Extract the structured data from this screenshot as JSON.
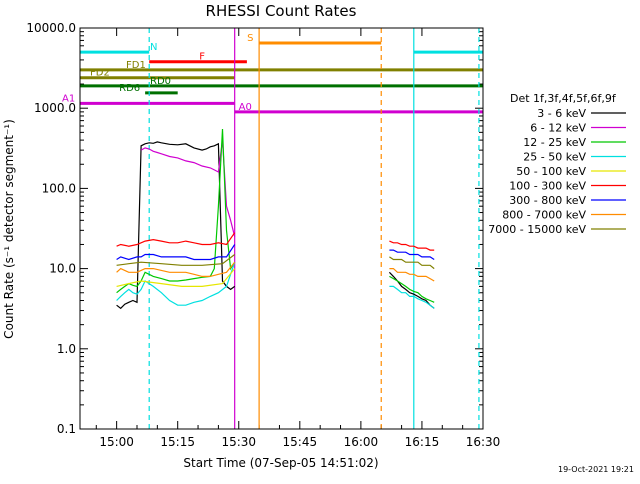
{
  "chart_data": {
    "type": "line",
    "title": "RHESSI Count Rates",
    "xlabel": "Start Time (07-Sep-05 14:51:02)",
    "ylabel": "Count Rate (s⁻¹ detector segment⁻¹)",
    "y_scale": "log",
    "ylim": [
      0.1,
      10000
    ],
    "xlim_minutes": [
      0,
      99
    ],
    "x_tick_labels": [
      "15:00",
      "15:15",
      "15:30",
      "15:45",
      "16:00",
      "16:15",
      "16:30"
    ],
    "x_tick_minutes": [
      9,
      24,
      39,
      54,
      69,
      84,
      99
    ],
    "y_tick_labels": [
      "0.1",
      "1.0",
      "10.0",
      "100.0",
      "1000.0",
      "10000.0"
    ],
    "y_tick_values": [
      0.1,
      1,
      10,
      100,
      1000,
      10000
    ],
    "legend_title": "Det 1f,3f,4f,5f,6f,9f",
    "legend_placement": "right",
    "timestamp": "19-Oct-2021 19:21",
    "series": [
      {
        "name": "3 - 6 keV",
        "color": "#000000",
        "x": [
          9,
          10,
          11,
          12,
          13,
          14,
          15,
          16,
          17,
          18,
          19,
          20,
          22,
          24,
          26,
          28,
          30,
          31,
          32,
          33,
          34,
          35,
          36,
          37,
          38
        ],
        "y": [
          3.5,
          3.2,
          3.6,
          3.8,
          4.0,
          3.8,
          340,
          360,
          370,
          365,
          380,
          370,
          355,
          350,
          360,
          320,
          300,
          310,
          330,
          340,
          360,
          7,
          6,
          5.5,
          6
        ]
      },
      {
        "name": "6 - 12 keV",
        "color": "#d000d0",
        "x": [
          15,
          16,
          17,
          18,
          19,
          20,
          22,
          24,
          26,
          28,
          30,
          32,
          33,
          34,
          35,
          36,
          37,
          38
        ],
        "y": [
          300,
          320,
          310,
          290,
          280,
          270,
          250,
          240,
          220,
          210,
          190,
          180,
          170,
          160,
          400,
          60,
          40,
          25
        ]
      },
      {
        "name": "12 - 25 keV",
        "color": "#00c800",
        "x": [
          9,
          10,
          11,
          12,
          13,
          14,
          15,
          16,
          18,
          20,
          22,
          24,
          26,
          28,
          30,
          32,
          33,
          34,
          35,
          36,
          37,
          38
        ],
        "y": [
          5,
          5.5,
          6,
          6.5,
          6.2,
          6,
          7,
          9,
          8,
          7.5,
          7,
          7,
          7.2,
          7.5,
          7.8,
          8,
          10,
          60,
          550,
          30,
          10,
          12
        ]
      },
      {
        "name": "25 - 50 keV",
        "color": "#00e0e0",
        "x": [
          9,
          10,
          11,
          12,
          13,
          14,
          15,
          16,
          18,
          20,
          22,
          24,
          26,
          28,
          30,
          32,
          34,
          36,
          38
        ],
        "y": [
          4,
          4.5,
          5,
          5.5,
          5,
          4.8,
          5.5,
          7,
          6,
          5,
          4,
          3.5,
          3.5,
          3.8,
          4,
          4.5,
          5,
          6,
          12
        ]
      },
      {
        "name": "50 - 100 keV",
        "color": "#e6e600",
        "x": [
          9,
          12,
          15,
          20,
          25,
          30,
          35,
          38
        ],
        "y": [
          6,
          6.5,
          7,
          6.5,
          6,
          6,
          6.5,
          10
        ]
      },
      {
        "name": "100 - 300 keV",
        "color": "#ff0000",
        "x": [
          9,
          10,
          12,
          14,
          15,
          16,
          18,
          20,
          22,
          24,
          26,
          28,
          30,
          32,
          34,
          36,
          38
        ],
        "y": [
          19,
          20,
          19,
          20,
          21,
          22,
          23,
          22,
          21,
          21,
          22,
          21,
          20,
          20,
          21,
          20,
          28
        ]
      },
      {
        "name": "300 - 800 keV",
        "color": "#0000ff",
        "x": [
          9,
          10,
          12,
          14,
          15,
          16,
          18,
          20,
          22,
          24,
          26,
          28,
          30,
          32,
          34,
          36,
          38
        ],
        "y": [
          13,
          14,
          13,
          14,
          14,
          15,
          15,
          14,
          14,
          14,
          14,
          13,
          13,
          13,
          14,
          14,
          20
        ]
      },
      {
        "name": "800 - 7000 keV",
        "color": "#ff8c00",
        "x": [
          9,
          10,
          12,
          14,
          15,
          16,
          18,
          20,
          22,
          24,
          26,
          28,
          30,
          32,
          34,
          36,
          38
        ],
        "y": [
          9,
          10,
          9,
          9,
          9.5,
          10,
          10,
          9.5,
          9,
          9,
          9,
          8.5,
          8,
          8,
          8.5,
          9,
          12
        ]
      },
      {
        "name": "7000 - 15000 keV",
        "color": "#808000",
        "x": [
          9,
          12,
          15,
          20,
          25,
          30,
          35,
          38
        ],
        "y": [
          11,
          11.5,
          12,
          11.5,
          11,
          11,
          11.5,
          15
        ]
      }
    ],
    "series_second_segment": {
      "x": [
        76,
        77,
        78,
        79,
        80,
        81,
        82,
        83,
        84,
        85,
        86,
        87
      ],
      "black": [
        9,
        8,
        7,
        6,
        5.5,
        5,
        4.8,
        4.5,
        4.2,
        4,
        3.5,
        3.2
      ],
      "red": [
        22,
        21,
        21,
        20,
        20,
        19,
        19,
        18,
        18,
        18,
        17,
        17
      ],
      "blue": [
        17,
        17,
        16,
        16,
        16,
        15,
        15,
        15,
        14,
        14,
        14,
        13
      ],
      "olive": [
        14,
        13,
        13,
        13,
        12,
        12,
        12,
        12,
        11,
        11,
        11,
        10
      ],
      "orange": [
        10,
        10,
        9,
        9,
        9,
        8.5,
        8.5,
        8,
        8,
        8,
        7.5,
        7
      ],
      "green": [
        8,
        7.5,
        7,
        6.5,
        6,
        5.5,
        5.2,
        5,
        4.5,
        4.2,
        4,
        3.8
      ],
      "cyan": [
        6,
        6,
        5.5,
        5,
        5,
        4.5,
        4.5,
        4.2,
        4,
        3.8,
        3.5,
        3.2
      ]
    },
    "state_bars": [
      {
        "label": "N",
        "color": "#00e0e0",
        "y": 5000,
        "x_ranges": [
          [
            0,
            17
          ],
          [
            82,
            99
          ]
        ]
      },
      {
        "label": "S",
        "color": "#ff8c00",
        "y": 6500,
        "x_ranges": [
          [
            44,
            74
          ]
        ]
      },
      {
        "label": "F",
        "color": "#ff0000",
        "y": 3800,
        "x_ranges": [
          [
            17,
            41
          ]
        ]
      },
      {
        "label": "FD1",
        "color": "#808000",
        "y": 3000,
        "x_ranges": [
          [
            0,
            99
          ]
        ]
      },
      {
        "label": "FD2",
        "color": "#808000",
        "y": 2400,
        "x_ranges": [
          [
            0,
            38
          ]
        ]
      },
      {
        "label": "RD0",
        "color": "#007000",
        "y": 1900,
        "x_ranges": [
          [
            0,
            99
          ]
        ]
      },
      {
        "label": "RD6",
        "color": "#007000",
        "y": 1550,
        "x_ranges": [
          [
            16,
            24
          ]
        ]
      },
      {
        "label": "A1",
        "color": "#d000d0",
        "y": 1150,
        "x_ranges": [
          [
            0,
            38
          ]
        ]
      },
      {
        "label": "A0",
        "color": "#d000d0",
        "y": 900,
        "x_ranges": [
          [
            38,
            99
          ]
        ]
      }
    ],
    "vertical_lines": [
      {
        "x": 17,
        "color": "#00e0e0",
        "dashed": true
      },
      {
        "x": 38,
        "color": "#d000d0",
        "dashed": false
      },
      {
        "x": 44,
        "color": "#ff8c00",
        "dashed": false
      },
      {
        "x": 74,
        "color": "#ff8c00",
        "dashed": true
      },
      {
        "x": 82,
        "color": "#00e0e0",
        "dashed": false
      },
      {
        "x": 98,
        "color": "#00e0e0",
        "dashed": true
      }
    ]
  }
}
